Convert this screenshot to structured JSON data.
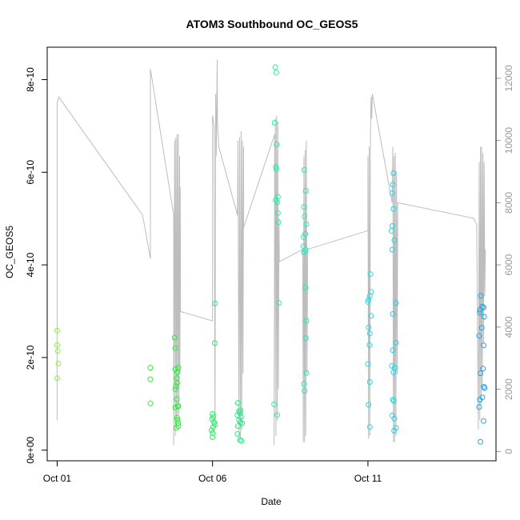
{
  "chart_data": {
    "type": "scatter",
    "title": "ATOM3 Southbound OC_GEOS5",
    "xlabel": "Date",
    "ylabel": "OC_GEOS5",
    "x_ticks": [
      {
        "day": 1,
        "label": "Oct 01"
      },
      {
        "day": 6,
        "label": "Oct 06"
      },
      {
        "day": 11,
        "label": "Oct 11"
      }
    ],
    "y_ticks": [
      {
        "value": 0,
        "label": "0e+00"
      },
      {
        "value": 2e-10,
        "label": "2e-10"
      },
      {
        "value": 4e-10,
        "label": "4e-10"
      },
      {
        "value": 6e-10,
        "label": "6e-10"
      },
      {
        "value": 8e-10,
        "label": "8e-10"
      }
    ],
    "y2_ticks": [
      {
        "value": 0,
        "label": "0"
      },
      {
        "value": 2000,
        "label": "2000"
      },
      {
        "value": 4000,
        "label": "4000"
      },
      {
        "value": 6000,
        "label": "6000"
      },
      {
        "value": 8000,
        "label": "8000"
      },
      {
        "value": 10000,
        "label": "10000"
      },
      {
        "value": 12000,
        "label": "12000"
      }
    ],
    "xlim": [
      0.68,
      15.12
    ],
    "ylim": [
      -2.3e-11,
      8.7e-10
    ],
    "y2lim": [
      -300,
      13000
    ],
    "points": [
      {
        "x": 1.0,
        "y": 2.58e-10
      },
      {
        "x": 1.0,
        "y": 2.27e-10
      },
      {
        "x": 1.02,
        "y": 2.14e-10
      },
      {
        "x": 1.04,
        "y": 1.87e-10
      },
      {
        "x": 1.0,
        "y": 1.55e-10
      },
      {
        "x": 4.0,
        "y": 1.78e-10
      },
      {
        "x": 4.0,
        "y": 1.53e-10
      },
      {
        "x": 4.0,
        "y": 1.01e-10
      },
      {
        "x": 4.78,
        "y": 2.43e-10
      },
      {
        "x": 4.8,
        "y": 2.2e-10
      },
      {
        "x": 4.8,
        "y": 1.75e-10
      },
      {
        "x": 4.86,
        "y": 1.68e-10
      },
      {
        "x": 4.9,
        "y": 1.78e-10
      },
      {
        "x": 4.85,
        "y": 1.55e-10
      },
      {
        "x": 4.86,
        "y": 1.45e-10
      },
      {
        "x": 4.83,
        "y": 1.38e-10
      },
      {
        "x": 4.8,
        "y": 1.32e-10
      },
      {
        "x": 4.85,
        "y": 1.1e-10
      },
      {
        "x": 4.8,
        "y": 9.2e-11
      },
      {
        "x": 4.88,
        "y": 9.5e-11
      },
      {
        "x": 4.9,
        "y": 9.5e-11
      },
      {
        "x": 4.86,
        "y": 7e-11
      },
      {
        "x": 4.87,
        "y": 6.5e-11
      },
      {
        "x": 4.89,
        "y": 5.8e-11
      },
      {
        "x": 4.83,
        "y": 4.8e-11
      },
      {
        "x": 4.9,
        "y": 5.2e-11
      },
      {
        "x": 6.08,
        "y": 3.17e-10
      },
      {
        "x": 6.07,
        "y": 2.31e-10
      },
      {
        "x": 6.0,
        "y": 7.8e-11
      },
      {
        "x": 6.02,
        "y": 7.2e-11
      },
      {
        "x": 5.98,
        "y": 6.7e-11
      },
      {
        "x": 6.05,
        "y": 6e-11
      },
      {
        "x": 6.08,
        "y": 5.5e-11
      },
      {
        "x": 6.02,
        "y": 5e-11
      },
      {
        "x": 5.97,
        "y": 4.3e-11
      },
      {
        "x": 6.0,
        "y": 3.7e-11
      },
      {
        "x": 6.0,
        "y": 2.8e-11
      },
      {
        "x": 6.82,
        "y": 1.02e-10
      },
      {
        "x": 6.85,
        "y": 8.4e-11
      },
      {
        "x": 6.9,
        "y": 8.6e-11
      },
      {
        "x": 6.88,
        "y": 8e-11
      },
      {
        "x": 6.8,
        "y": 7.6e-11
      },
      {
        "x": 6.92,
        "y": 7.2e-11
      },
      {
        "x": 6.85,
        "y": 6.5e-11
      },
      {
        "x": 6.9,
        "y": 6e-11
      },
      {
        "x": 6.95,
        "y": 5.8e-11
      },
      {
        "x": 6.82,
        "y": 5.2e-11
      },
      {
        "x": 6.8,
        "y": 3.5e-11
      },
      {
        "x": 6.88,
        "y": 2.2e-11
      },
      {
        "x": 6.93,
        "y": 2e-11
      },
      {
        "x": 8.02,
        "y": 8.27e-10
      },
      {
        "x": 8.05,
        "y": 8.15e-10
      },
      {
        "x": 8.0,
        "y": 7.07e-10
      },
      {
        "x": 8.06,
        "y": 6.6e-10
      },
      {
        "x": 8.04,
        "y": 6.12e-10
      },
      {
        "x": 8.05,
        "y": 6.07e-10
      },
      {
        "x": 8.1,
        "y": 5.47e-10
      },
      {
        "x": 8.03,
        "y": 5.4e-10
      },
      {
        "x": 8.08,
        "y": 5.35e-10
      },
      {
        "x": 8.1,
        "y": 5.12e-10
      },
      {
        "x": 8.12,
        "y": 4.92e-10
      },
      {
        "x": 8.14,
        "y": 3.18e-10
      },
      {
        "x": 7.98,
        "y": 9.9e-11
      },
      {
        "x": 8.08,
        "y": 7.6e-11
      },
      {
        "x": 8.95,
        "y": 6.05e-10
      },
      {
        "x": 9.0,
        "y": 5.6e-10
      },
      {
        "x": 8.94,
        "y": 5.25e-10
      },
      {
        "x": 8.96,
        "y": 5.05e-10
      },
      {
        "x": 9.02,
        "y": 4.88e-10
      },
      {
        "x": 8.98,
        "y": 4.67e-10
      },
      {
        "x": 8.93,
        "y": 4.6e-10
      },
      {
        "x": 8.92,
        "y": 4.4e-10
      },
      {
        "x": 8.94,
        "y": 4.27e-10
      },
      {
        "x": 9.0,
        "y": 4.32e-10
      },
      {
        "x": 8.99,
        "y": 3.51e-10
      },
      {
        "x": 9.02,
        "y": 2.79e-10
      },
      {
        "x": 9.0,
        "y": 2.42e-10
      },
      {
        "x": 9.02,
        "y": 1.67e-10
      },
      {
        "x": 8.94,
        "y": 1.43e-10
      },
      {
        "x": 8.96,
        "y": 1.28e-10
      },
      {
        "x": 11.08,
        "y": 3.8e-10
      },
      {
        "x": 11.1,
        "y": 3.42e-10
      },
      {
        "x": 11.06,
        "y": 3.33e-10
      },
      {
        "x": 11.02,
        "y": 3.25e-10
      },
      {
        "x": 11.0,
        "y": 3.2e-10
      },
      {
        "x": 11.1,
        "y": 2.9e-10
      },
      {
        "x": 11.02,
        "y": 2.65e-10
      },
      {
        "x": 11.06,
        "y": 2.52e-10
      },
      {
        "x": 11.05,
        "y": 2.27e-10
      },
      {
        "x": 11.0,
        "y": 1.86e-10
      },
      {
        "x": 11.06,
        "y": 1.47e-10
      },
      {
        "x": 11.02,
        "y": 9.8e-11
      },
      {
        "x": 11.06,
        "y": 5e-11
      },
      {
        "x": 11.82,
        "y": 5.98e-10
      },
      {
        "x": 11.8,
        "y": 5.73e-10
      },
      {
        "x": 11.78,
        "y": 5.55e-10
      },
      {
        "x": 11.82,
        "y": 5.21e-10
      },
      {
        "x": 11.78,
        "y": 4.84e-10
      },
      {
        "x": 11.76,
        "y": 4.73e-10
      },
      {
        "x": 11.85,
        "y": 4.53e-10
      },
      {
        "x": 11.78,
        "y": 4.33e-10
      },
      {
        "x": 11.9,
        "y": 3.18e-10
      },
      {
        "x": 11.8,
        "y": 2.94e-10
      },
      {
        "x": 11.9,
        "y": 2.32e-10
      },
      {
        "x": 11.8,
        "y": 2.16e-10
      },
      {
        "x": 11.77,
        "y": 1.82e-10
      },
      {
        "x": 11.86,
        "y": 1.78e-10
      },
      {
        "x": 11.82,
        "y": 1.68e-10
      },
      {
        "x": 11.8,
        "y": 1.09e-10
      },
      {
        "x": 11.83,
        "y": 1.06e-10
      },
      {
        "x": 11.78,
        "y": 7.5e-11
      },
      {
        "x": 11.85,
        "y": 6.8e-11
      },
      {
        "x": 11.9,
        "y": 4.8e-11
      },
      {
        "x": 11.84,
        "y": 4.2e-11
      },
      {
        "x": 14.63,
        "y": 3.33e-10
      },
      {
        "x": 14.6,
        "y": 3.03e-10
      },
      {
        "x": 14.68,
        "y": 3.1e-10
      },
      {
        "x": 14.72,
        "y": 3.08e-10
      },
      {
        "x": 14.6,
        "y": 2.97e-10
      },
      {
        "x": 14.74,
        "y": 2.88e-10
      },
      {
        "x": 14.66,
        "y": 2.64e-10
      },
      {
        "x": 14.58,
        "y": 2.47e-10
      },
      {
        "x": 14.72,
        "y": 2.26e-10
      },
      {
        "x": 14.7,
        "y": 1.76e-10
      },
      {
        "x": 14.62,
        "y": 1.66e-10
      },
      {
        "x": 14.73,
        "y": 1.37e-10
      },
      {
        "x": 14.75,
        "y": 1.34e-10
      },
      {
        "x": 14.68,
        "y": 1.14e-10
      },
      {
        "x": 14.6,
        "y": 1.09e-10
      },
      {
        "x": 14.58,
        "y": 9.3e-11
      },
      {
        "x": 14.72,
        "y": 6.3e-11
      },
      {
        "x": 14.62,
        "y": 1.8e-11
      }
    ],
    "altitude_series": [
      {
        "x": 1.0,
        "y2": 1000
      },
      {
        "x": 1.0,
        "y2": 11200
      },
      {
        "x": 1.05,
        "y2": 11400
      },
      {
        "x": 3.75,
        "y2": 7600
      },
      {
        "x": 3.75,
        "y2": 7600
      },
      {
        "x": 4.0,
        "y2": 6200
      },
      {
        "x": 4.0,
        "y2": 12300
      },
      {
        "x": 4.75,
        "y2": 7600
      },
      {
        "x": 4.75,
        "y2": 200
      },
      {
        "x": 4.75,
        "y2": 200
      },
      {
        "x": 4.78,
        "y2": 10000
      },
      {
        "x": 4.8,
        "y2": 500
      },
      {
        "x": 4.82,
        "y2": 10100
      },
      {
        "x": 4.84,
        "y2": 800
      },
      {
        "x": 4.86,
        "y2": 10200
      },
      {
        "x": 4.88,
        "y2": 1000
      },
      {
        "x": 4.9,
        "y2": 10200
      },
      {
        "x": 4.92,
        "y2": 1200
      },
      {
        "x": 4.94,
        "y2": 9500
      },
      {
        "x": 4.95,
        "y2": 2500
      },
      {
        "x": 4.96,
        "y2": 8500
      },
      {
        "x": 4.97,
        "y2": 4500
      },
      {
        "x": 6.0,
        "y2": 4200
      },
      {
        "x": 6.0,
        "y2": 10800
      },
      {
        "x": 6.05,
        "y2": 10500
      },
      {
        "x": 6.08,
        "y2": 800
      },
      {
        "x": 6.1,
        "y2": 11500
      },
      {
        "x": 6.12,
        "y2": 9500
      },
      {
        "x": 6.15,
        "y2": 12600
      },
      {
        "x": 6.16,
        "y2": 10500
      },
      {
        "x": 6.2,
        "y2": 9800
      },
      {
        "x": 6.8,
        "y2": 7600
      },
      {
        "x": 6.82,
        "y2": 10000
      },
      {
        "x": 6.85,
        "y2": 300
      },
      {
        "x": 6.87,
        "y2": 10100
      },
      {
        "x": 6.9,
        "y2": 400
      },
      {
        "x": 6.92,
        "y2": 10300
      },
      {
        "x": 6.94,
        "y2": 700
      },
      {
        "x": 6.96,
        "y2": 10000
      },
      {
        "x": 6.98,
        "y2": 2500
      },
      {
        "x": 7.0,
        "y2": 9800
      },
      {
        "x": 7.0,
        "y2": 7200
      },
      {
        "x": 7.0,
        "y2": 7200
      },
      {
        "x": 8.0,
        "y2": 10200
      },
      {
        "x": 7.98,
        "y2": 200
      },
      {
        "x": 8.02,
        "y2": 10700
      },
      {
        "x": 8.04,
        "y2": 500
      },
      {
        "x": 8.06,
        "y2": 10800
      },
      {
        "x": 8.08,
        "y2": 1000
      },
      {
        "x": 8.1,
        "y2": 10600
      },
      {
        "x": 8.12,
        "y2": 2000
      },
      {
        "x": 8.14,
        "y2": 7500
      },
      {
        "x": 8.15,
        "y2": 6100
      },
      {
        "x": 8.15,
        "y2": 6100
      },
      {
        "x": 8.9,
        "y2": 6500
      },
      {
        "x": 8.92,
        "y2": 300
      },
      {
        "x": 8.94,
        "y2": 9500
      },
      {
        "x": 8.96,
        "y2": 300
      },
      {
        "x": 8.98,
        "y2": 9700
      },
      {
        "x": 9.0,
        "y2": 500
      },
      {
        "x": 9.02,
        "y2": 10000
      },
      {
        "x": 9.04,
        "y2": 2500
      },
      {
        "x": 9.06,
        "y2": 6500
      },
      {
        "x": 9.06,
        "y2": 6500
      },
      {
        "x": 11.0,
        "y2": 7100
      },
      {
        "x": 11.0,
        "y2": 9500
      },
      {
        "x": 11.02,
        "y2": 400
      },
      {
        "x": 11.04,
        "y2": 9800
      },
      {
        "x": 11.06,
        "y2": 500
      },
      {
        "x": 11.08,
        "y2": 10000
      },
      {
        "x": 11.1,
        "y2": 11400
      },
      {
        "x": 11.12,
        "y2": 10700
      },
      {
        "x": 11.14,
        "y2": 11500
      },
      {
        "x": 11.78,
        "y2": 8000
      },
      {
        "x": 11.78,
        "y2": 8000
      },
      {
        "x": 11.8,
        "y2": 9800
      },
      {
        "x": 11.82,
        "y2": 300
      },
      {
        "x": 11.84,
        "y2": 9500
      },
      {
        "x": 11.86,
        "y2": 300
      },
      {
        "x": 11.88,
        "y2": 9600
      },
      {
        "x": 11.9,
        "y2": 500
      },
      {
        "x": 11.92,
        "y2": 9000
      },
      {
        "x": 11.94,
        "y2": 2500
      },
      {
        "x": 11.96,
        "y2": 8000
      },
      {
        "x": 11.96,
        "y2": 8000
      },
      {
        "x": 14.4,
        "y2": 7500
      },
      {
        "x": 14.5,
        "y2": 7300
      },
      {
        "x": 14.55,
        "y2": 700
      },
      {
        "x": 14.58,
        "y2": 9300
      },
      {
        "x": 14.6,
        "y2": 1000
      },
      {
        "x": 14.62,
        "y2": 9800
      },
      {
        "x": 14.64,
        "y2": 1500
      },
      {
        "x": 14.66,
        "y2": 9800
      },
      {
        "x": 14.68,
        "y2": 2000
      },
      {
        "x": 14.7,
        "y2": 9600
      },
      {
        "x": 14.72,
        "y2": 3500
      },
      {
        "x": 14.74,
        "y2": 9300
      },
      {
        "x": 14.76,
        "y2": 5000
      },
      {
        "x": 14.78,
        "y2": 6500
      }
    ],
    "point_color_scale": [
      "#8bef4b",
      "#22f022",
      "#22f0a8",
      "#22dced",
      "#22a0e0"
    ],
    "altitude_color": "#bdbdbd",
    "grid": false,
    "legend": "none"
  }
}
